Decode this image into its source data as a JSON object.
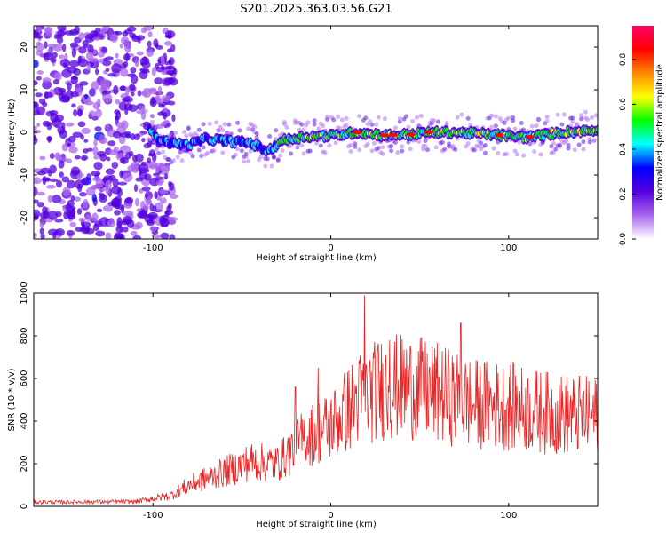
{
  "title": "S201.2025.363.03.56.G21",
  "chart_data": [
    {
      "type": "heatmap",
      "title": "S201.2025.363.03.56.G21",
      "xlabel": "Height of straight line (km)",
      "ylabel": "Frequency (Hz)",
      "xlim": [
        -167,
        150
      ],
      "ylim": [
        -25,
        25
      ],
      "xticks": [
        -100,
        0,
        100
      ],
      "xticklabels": [
        "-100",
        "0",
        "100"
      ],
      "yticks": [
        -20,
        -10,
        0,
        10,
        20
      ],
      "yticklabels": [
        "-20",
        "-10",
        "0",
        "10",
        "20"
      ],
      "noise_region_end_km": -100,
      "signal_band_center_hz": 0,
      "signal_trace": [
        {
          "x": -100,
          "y": -1
        },
        {
          "x": -90,
          "y": -2.5
        },
        {
          "x": -80,
          "y": -3
        },
        {
          "x": -70,
          "y": -1.5
        },
        {
          "x": -60,
          "y": -2
        },
        {
          "x": -45,
          "y": -2.5
        },
        {
          "x": -35,
          "y": -4.5
        },
        {
          "x": -28,
          "y": -2
        },
        {
          "x": -15,
          "y": -1
        },
        {
          "x": 0,
          "y": -0.8
        },
        {
          "x": 15,
          "y": 0
        },
        {
          "x": 30,
          "y": -0.7
        },
        {
          "x": 45,
          "y": -0.5
        },
        {
          "x": 55,
          "y": 0
        },
        {
          "x": 70,
          "y": 0
        },
        {
          "x": 90,
          "y": -0.5
        },
        {
          "x": 110,
          "y": -1.2
        },
        {
          "x": 130,
          "y": 0
        },
        {
          "x": 150,
          "y": 0.5
        }
      ],
      "hotspots_x_km": [
        15,
        30,
        35,
        45,
        55,
        95,
        112
      ],
      "colorbar": {
        "label": "Normalized spectral amplitude",
        "range": [
          0.0,
          0.95
        ],
        "ticks": [
          0.0,
          0.2,
          0.4,
          0.6,
          0.8
        ],
        "ticklabels": [
          "0.0",
          "0.2",
          "0.4",
          "0.6",
          "0.8"
        ],
        "colors": [
          "#ffffff",
          "#aa66ee",
          "#5500dd",
          "#0000ff",
          "#00ffff",
          "#00ff00",
          "#ffff00",
          "#ff8800",
          "#ff0000",
          "#ff0066"
        ]
      }
    },
    {
      "type": "line",
      "xlabel": "Height of straight line (km)",
      "ylabel": "SNR (10 * v/v)",
      "xlim": [
        -167,
        150
      ],
      "ylim": [
        0,
        1000
      ],
      "xticks": [
        -100,
        0,
        100
      ],
      "xticklabels": [
        "-100",
        "0",
        "100"
      ],
      "yticks": [
        0,
        200,
        400,
        600,
        800,
        1000
      ],
      "yticklabels": [
        "0",
        "200",
        "400",
        "600",
        "800",
        "1000"
      ],
      "color": "#ee2222",
      "envelope": [
        {
          "x": -167,
          "y": 20
        },
        {
          "x": -110,
          "y": 22
        },
        {
          "x": -90,
          "y": 50
        },
        {
          "x": -80,
          "y": 100
        },
        {
          "x": -60,
          "y": 160
        },
        {
          "x": -45,
          "y": 210
        },
        {
          "x": -30,
          "y": 200
        },
        {
          "x": -15,
          "y": 320
        },
        {
          "x": 0,
          "y": 380
        },
        {
          "x": 15,
          "y": 500
        },
        {
          "x": 30,
          "y": 560
        },
        {
          "x": 45,
          "y": 560
        },
        {
          "x": 60,
          "y": 530
        },
        {
          "x": 80,
          "y": 480
        },
        {
          "x": 100,
          "y": 470
        },
        {
          "x": 120,
          "y": 440
        },
        {
          "x": 150,
          "y": 420
        }
      ],
      "peaks": [
        {
          "x": 19,
          "y": 990
        },
        {
          "x": 33,
          "y": 780
        },
        {
          "x": 73,
          "y": 860
        },
        {
          "x": -20,
          "y": 560
        },
        {
          "x": -7,
          "y": 650
        }
      ]
    }
  ]
}
